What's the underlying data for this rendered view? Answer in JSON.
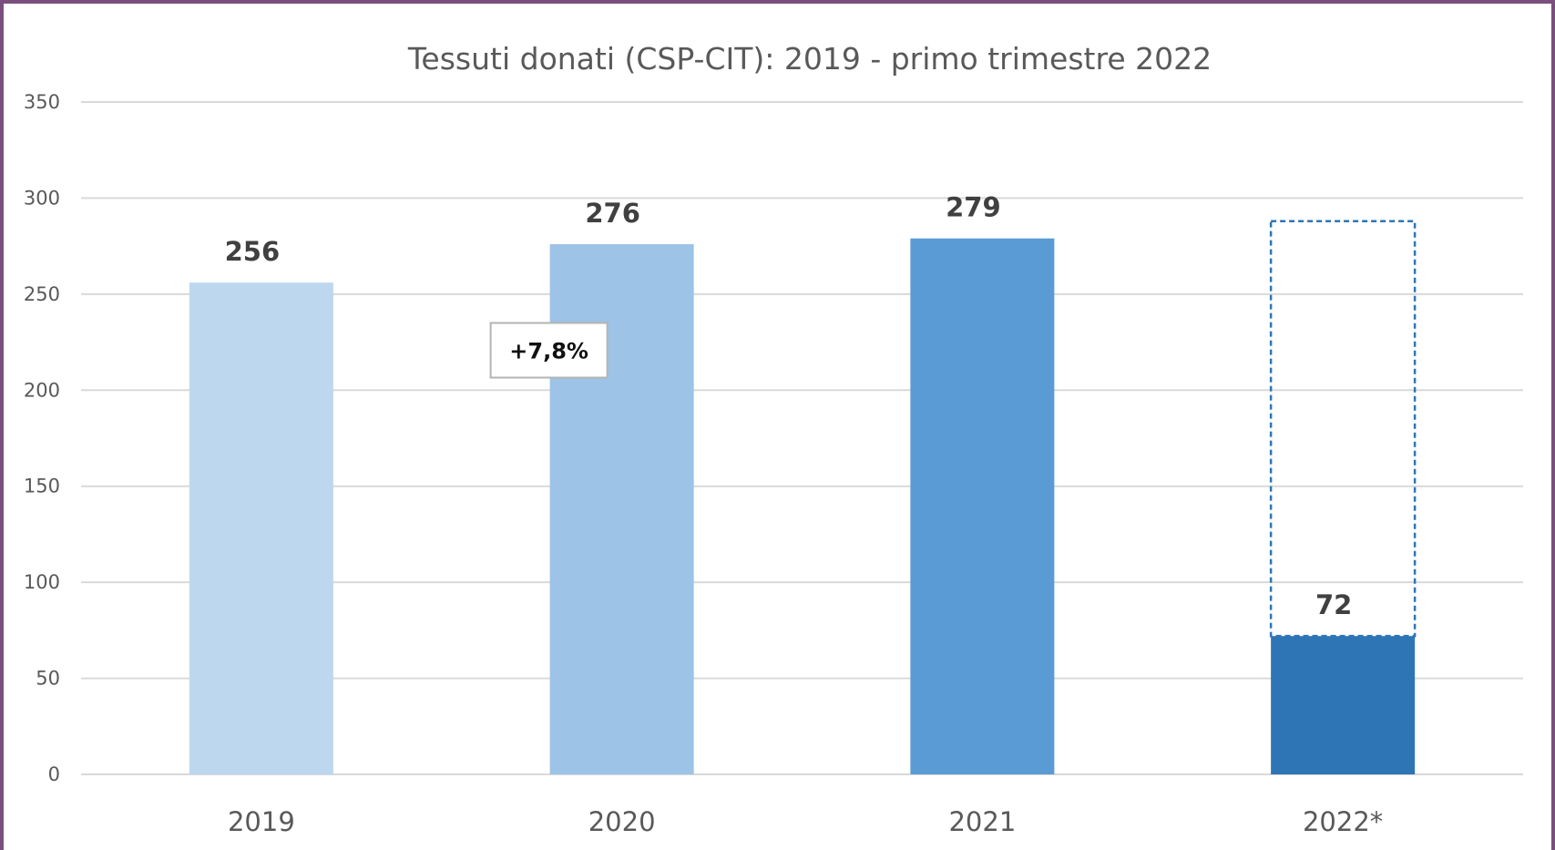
{
  "chart_data": {
    "type": "bar",
    "title": "Tessuti donati (CSP-CIT): 2019 - primo trimestre 2022",
    "xlabel": "",
    "ylabel": "",
    "ylim": [
      0,
      350
    ],
    "yticks": [
      0,
      50,
      100,
      150,
      200,
      250,
      300,
      350
    ],
    "grid": true,
    "categories": [
      "2019",
      "2020",
      "2021",
      "2022*"
    ],
    "values": [
      256,
      276,
      279,
      72
    ],
    "data_labels": [
      "256",
      "276",
      "279",
      "72"
    ],
    "bar_colors": [
      "#bdd7ee",
      "#9dc3e6",
      "#5b9bd5",
      "#2e75b6"
    ],
    "projection": {
      "category": "2022*",
      "value": 288,
      "style": "dashed-outline",
      "color": "#2e75b6"
    },
    "annotation": {
      "text": "+7,8%",
      "near_category": "2020"
    }
  }
}
